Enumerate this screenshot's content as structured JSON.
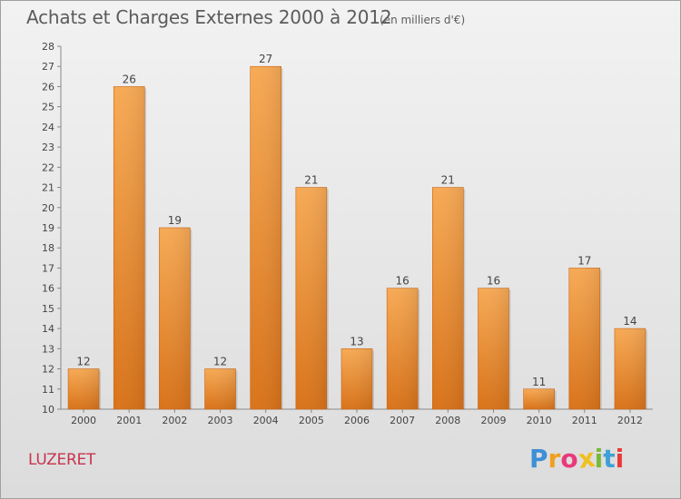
{
  "header": {
    "title": "Achats et Charges Externes 2000 à 2012",
    "subtitle": "(en milliers d'€)"
  },
  "commune": "LUZERET",
  "logo": {
    "letters": [
      "P",
      "r",
      "o",
      "x",
      "i",
      "t",
      "i"
    ],
    "colors": [
      "#3f8fd6",
      "#f0a020",
      "#e83a7a",
      "#f0c020",
      "#7ab83a",
      "#3fa0d6",
      "#e83a3a"
    ]
  },
  "chart_data": {
    "type": "bar",
    "title": "Achats et Charges Externes 2000 à 2012",
    "subtitle": "(en milliers d'€)",
    "categories": [
      "2000",
      "2001",
      "2002",
      "2003",
      "2004",
      "2005",
      "2006",
      "2007",
      "2008",
      "2009",
      "2010",
      "2011",
      "2012"
    ],
    "values": [
      12,
      26,
      19,
      12,
      27,
      21,
      13,
      16,
      21,
      16,
      11,
      17,
      14
    ],
    "ylim": [
      10,
      28
    ],
    "yticks": [
      10,
      11,
      12,
      13,
      14,
      15,
      16,
      17,
      18,
      19,
      20,
      21,
      22,
      23,
      24,
      25,
      26,
      27,
      28
    ],
    "grid": false,
    "data_labels": true,
    "bar_color": "#f39a3c"
  }
}
